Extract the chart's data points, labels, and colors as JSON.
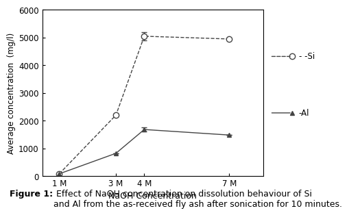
{
  "x_labels": [
    "1 M",
    "3 M",
    "4 M",
    "7 M"
  ],
  "x_values": [
    1,
    3,
    4,
    7
  ],
  "si_values": [
    80,
    2200,
    5050,
    4950
  ],
  "al_values": [
    80,
    820,
    1680,
    1480
  ],
  "si_yerr": [
    0,
    50,
    150,
    0
  ],
  "al_yerr": [
    0,
    0,
    80,
    0
  ],
  "ylabel": "Average concentration  (mg/l)",
  "xlabel": "NaOH Concentration",
  "ylim": [
    0,
    6000
  ],
  "yticks": [
    0,
    1000,
    2000,
    3000,
    4000,
    5000,
    6000
  ],
  "line_color": "#444444",
  "bg_color": "#ffffff",
  "caption_bold": "Figure 1:",
  "caption_normal": " Effect of NaOH concentration on dissolution behaviour of Si\nand Al from the as-received fly ash after sonication for 10 minutes."
}
